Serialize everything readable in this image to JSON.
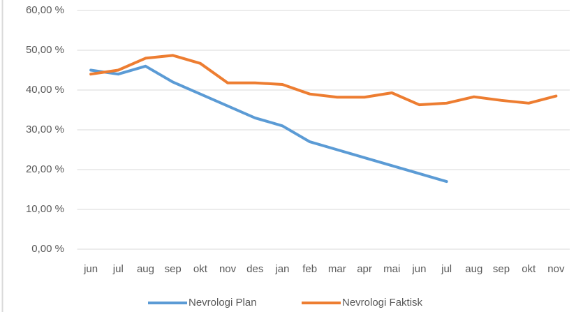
{
  "chart_data": {
    "type": "line",
    "categories": [
      "jun",
      "jul",
      "aug",
      "sep",
      "okt",
      "nov",
      "des",
      "jan",
      "feb",
      "mar",
      "apr",
      "mai",
      "jun",
      "jul",
      "aug",
      "sep",
      "okt",
      "nov"
    ],
    "series": [
      {
        "name": "Nevrologi Plan",
        "color": "#5b9bd5",
        "values": [
          45,
          44,
          46,
          42,
          39,
          36,
          33,
          31,
          27,
          25,
          23,
          21,
          19,
          17,
          null,
          null,
          null,
          null
        ]
      },
      {
        "name": "Nevrologi Faktisk",
        "color": "#ed7d31",
        "values": [
          44,
          45,
          48,
          48.7,
          46.7,
          41.8,
          41.8,
          41.4,
          39,
          38.2,
          38.2,
          39.3,
          36.3,
          36.7,
          38.3,
          37.4,
          36.7,
          38.5
        ]
      }
    ],
    "ylim": [
      0,
      60
    ],
    "yticks": [
      {
        "value": 0,
        "label": "0,00 %"
      },
      {
        "value": 10,
        "label": "10,00 %"
      },
      {
        "value": 20,
        "label": "20,00 %"
      },
      {
        "value": 30,
        "label": "30,00 %"
      },
      {
        "value": 40,
        "label": "40,00 %"
      },
      {
        "value": 50,
        "label": "50,00 %"
      },
      {
        "value": 60,
        "label": "60,00 %"
      }
    ],
    "grid": true,
    "legend": "bottom"
  }
}
